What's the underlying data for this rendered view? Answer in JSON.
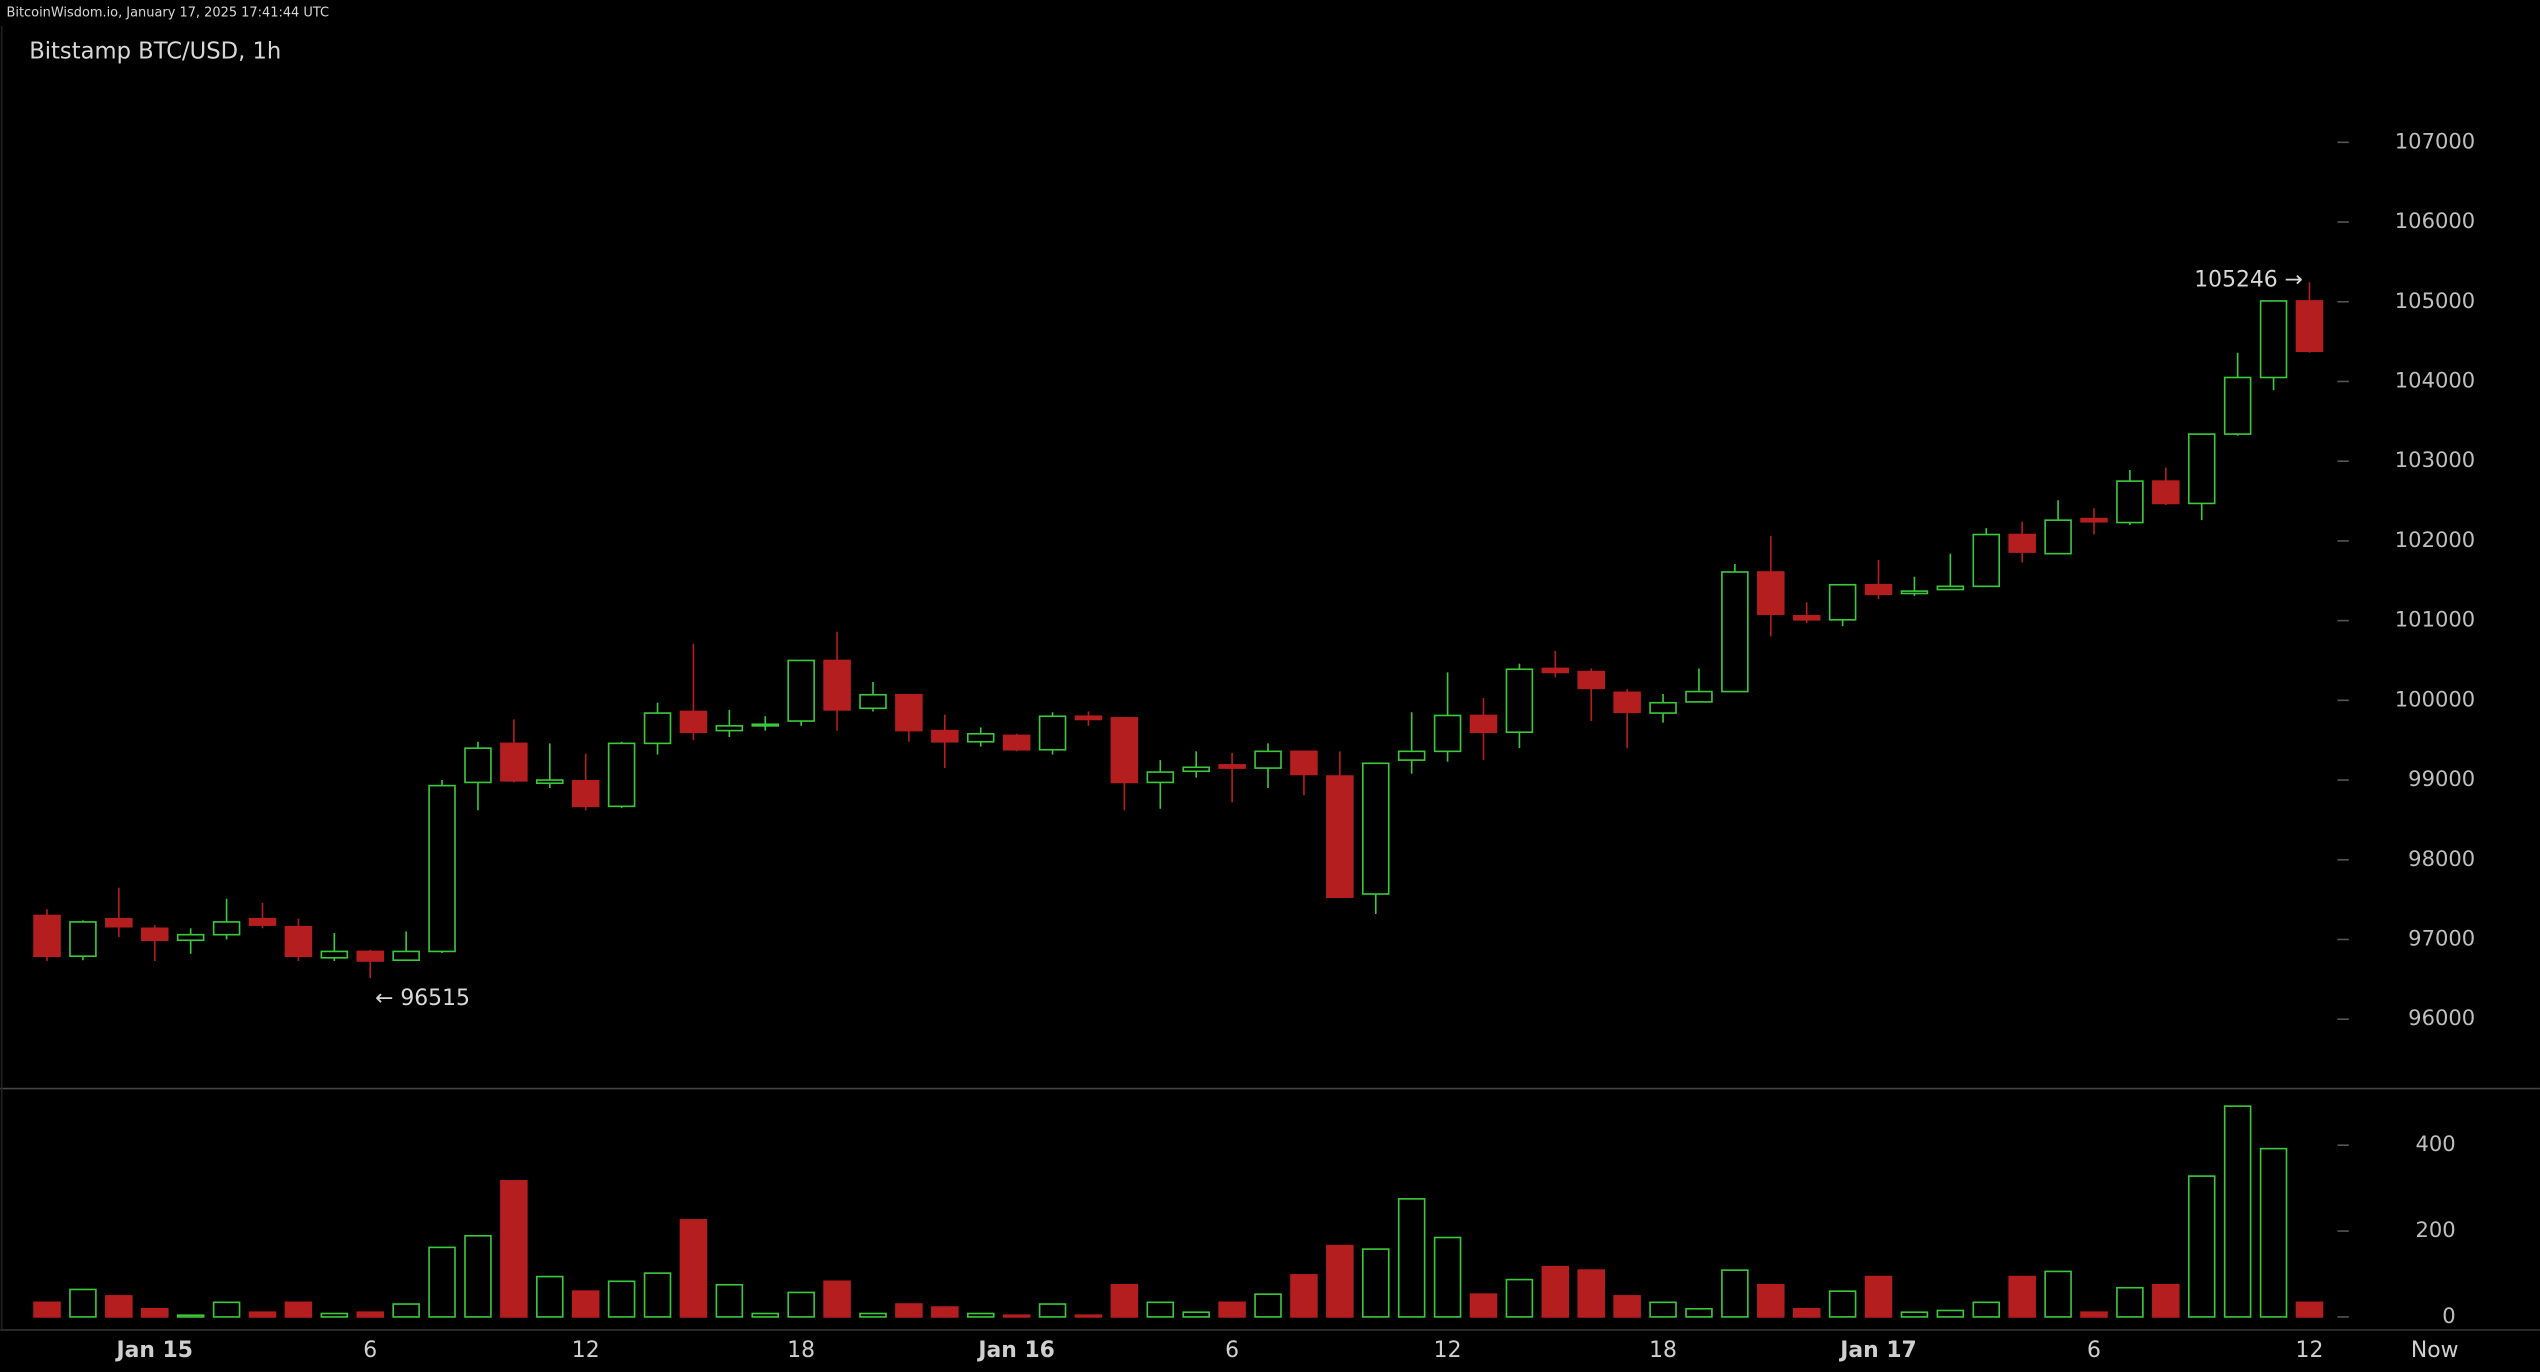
{
  "header": {
    "site": "BitcoinWisdom.io, January 17, 2025 17:41:44 UTC"
  },
  "chart_data": {
    "type": "candlestick",
    "title": "Bitstamp BTC/USD, 1h",
    "categories": [
      null,
      null,
      null,
      "Jan 15",
      null,
      null,
      null,
      null,
      null,
      "6",
      null,
      null,
      null,
      null,
      null,
      "12",
      null,
      null,
      null,
      null,
      null,
      "18",
      null,
      null,
      null,
      null,
      null,
      "Jan 16",
      null,
      null,
      null,
      null,
      null,
      "6",
      null,
      null,
      null,
      null,
      null,
      "12",
      null,
      null,
      null,
      null,
      null,
      "18",
      null,
      null,
      null,
      null,
      null,
      "Jan 17",
      null,
      null,
      null,
      null,
      null,
      "6",
      null,
      null,
      null,
      null,
      null,
      "12"
    ],
    "open": [
      97300,
      96790,
      97260,
      97140,
      96990,
      97060,
      97260,
      97160,
      96770,
      96850,
      96740,
      96850,
      98970,
      99460,
      98960,
      98990,
      98670,
      99460,
      99860,
      99620,
      99680,
      99740,
      100500,
      99900,
      100070,
      99620,
      99480,
      99560,
      99380,
      99800,
      99780,
      98970,
      99110,
      99190,
      99150,
      99360,
      99050,
      97570,
      99250,
      99360,
      99810,
      99600,
      100400,
      100360,
      100100,
      99840,
      99980,
      100110,
      101610,
      101060,
      101010,
      101450,
      101340,
      101390,
      101430,
      102080,
      101840,
      102280,
      102230,
      102750,
      102470,
      103340,
      104050,
      105010
    ],
    "high": [
      97380,
      97240,
      97650,
      97180,
      97140,
      97510,
      97460,
      97260,
      97080,
      96870,
      97100,
      99000,
      99480,
      99760,
      99460,
      99330,
      99480,
      99970,
      100710,
      99880,
      99800,
      100500,
      100860,
      100230,
      100070,
      99820,
      99660,
      99580,
      99850,
      99860,
      99780,
      99250,
      99360,
      99340,
      99460,
      99360,
      99360,
      99210,
      99850,
      100350,
      100030,
      100460,
      100620,
      100400,
      100140,
      100080,
      100400,
      101710,
      102060,
      101230,
      101450,
      101760,
      101550,
      101840,
      102160,
      102240,
      102510,
      102410,
      102890,
      102920,
      103340,
      104360,
      105010,
      105246
    ],
    "low": [
      96730,
      96740,
      97030,
      96730,
      96820,
      97000,
      97140,
      96730,
      96730,
      96515,
      96730,
      96830,
      98620,
      98970,
      98900,
      98620,
      98650,
      99320,
      99500,
      99540,
      99620,
      99680,
      99620,
      99860,
      99480,
      99150,
      99420,
      99360,
      99320,
      99680,
      98620,
      98640,
      99030,
      98720,
      98900,
      98810,
      97530,
      97320,
      99080,
      99230,
      99250,
      99400,
      100290,
      99740,
      99400,
      99720,
      99980,
      100110,
      100800,
      100970,
      100930,
      101270,
      101310,
      101390,
      101430,
      101730,
      101830,
      102080,
      102200,
      102450,
      102260,
      103320,
      103890,
      104360
    ],
    "close": [
      96790,
      97220,
      97160,
      96990,
      97060,
      97220,
      97180,
      96790,
      96850,
      96730,
      96850,
      98930,
      99400,
      98990,
      99000,
      98670,
      99460,
      99840,
      99600,
      99680,
      99700,
      100500,
      99880,
      100070,
      99620,
      99480,
      99580,
      99380,
      99800,
      99760,
      98970,
      99100,
      99160,
      99150,
      99360,
      99070,
      97530,
      99210,
      99360,
      99810,
      99600,
      100390,
      100350,
      100150,
      99850,
      99970,
      100110,
      101610,
      101080,
      101010,
      101450,
      101330,
      101370,
      101430,
      102080,
      101860,
      102260,
      102240,
      102750,
      102470,
      103340,
      104050,
      105010,
      104380
    ],
    "up_color": "#3cc83c",
    "down_color": "#b41e1e",
    "ylim": [
      95130,
      108440
    ],
    "yticks": [
      96000,
      97000,
      98000,
      99000,
      100000,
      101000,
      102000,
      103000,
      104000,
      105000,
      106000,
      107000
    ],
    "annotations": [
      {
        "value": 105246,
        "label": "105246 →"
      },
      {
        "value": 96515,
        "label": "← 96515"
      }
    ],
    "volume": {
      "values": [
        34,
        64,
        49,
        19,
        4,
        34,
        11,
        34,
        8,
        11,
        30,
        162,
        189,
        317,
        94,
        60,
        83,
        102,
        226,
        75,
        8,
        57,
        83,
        8,
        30,
        23,
        8,
        4,
        30,
        4,
        75,
        34,
        11,
        34,
        53,
        98,
        166,
        158,
        275,
        185,
        53,
        87,
        117,
        109,
        49,
        34,
        19,
        109,
        75,
        19,
        60,
        94,
        11,
        15,
        34,
        94,
        106,
        11,
        68,
        75,
        328,
        491,
        392,
        34
      ],
      "ylim": [
        0,
        532
      ],
      "yticks": [
        0,
        200,
        400
      ]
    },
    "now_label": "Now"
  }
}
